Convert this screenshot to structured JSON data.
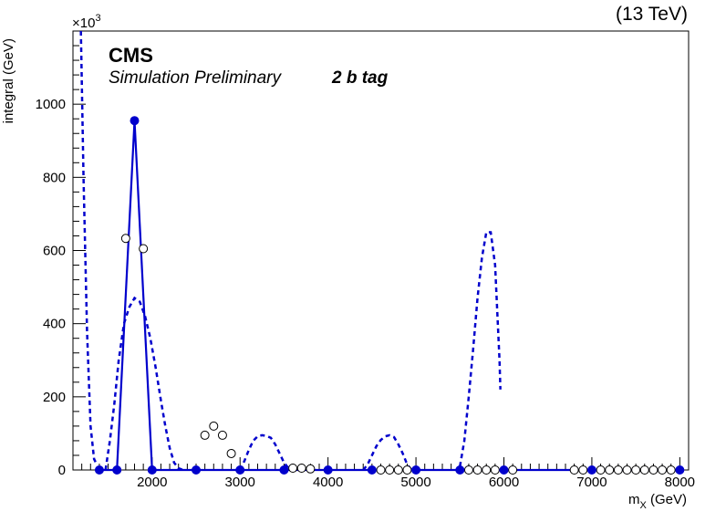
{
  "header": {
    "energy": "(13 TeV)"
  },
  "labels": {
    "cms": "CMS",
    "sim": "Simulation Preliminary",
    "tag": "2 b tag",
    "exponent_base": "×10",
    "exponent_power": "3"
  },
  "colors": {
    "accent": "#0000cc",
    "frame": "#000000",
    "background": "#ffffff"
  },
  "chart_data": {
    "type": "scatter",
    "xlabel_main": "m",
    "xlabel_sub": "X",
    "xlabel_unit": " (GeV)",
    "ylabel": "integral (GeV)",
    "xlim": [
      1100,
      8100
    ],
    "ylim": [
      0,
      1200
    ],
    "y_exponent": "10^3",
    "xticks": [
      2000,
      3000,
      4000,
      5000,
      6000,
      7000,
      8000
    ],
    "yticks": [
      0,
      200,
      400,
      600,
      800,
      1000
    ],
    "series": [
      {
        "style": "filled-markers-solid-line",
        "x": [
          1400,
          1600,
          1800,
          2000,
          2500,
          3000,
          3500,
          4000,
          4500,
          5000,
          5500,
          6000,
          7000,
          8000
        ],
        "values": [
          0,
          0,
          955,
          0,
          0,
          0,
          0,
          0,
          0,
          0,
          0,
          0,
          0,
          0
        ]
      },
      {
        "style": "open-markers",
        "x": [
          1700,
          1900,
          2600,
          2700,
          2800,
          2900,
          3600,
          3700,
          3800,
          4600,
          4700,
          4800,
          4900,
          5600,
          5700,
          5800,
          5900,
          6100,
          6800,
          6900,
          7100,
          7200,
          7300,
          7400,
          7500,
          7600,
          7700,
          7800,
          7900
        ],
        "values": [
          633,
          605,
          95,
          120,
          95,
          45,
          5,
          5,
          3,
          0,
          0,
          0,
          0,
          0,
          0,
          0,
          0,
          0,
          0,
          0,
          0,
          0,
          0,
          0,
          0,
          0,
          0,
          0,
          0
        ]
      },
      {
        "style": "dashed-line",
        "segments": [
          {
            "x": [
              1190,
              1220,
              1260,
              1300,
              1340,
              1360
            ],
            "values": [
              1200,
              800,
              380,
              120,
              30,
              20
            ]
          },
          {
            "x": [
              1470,
              1520,
              1570,
              1620,
              1680,
              1740,
              1800,
              1860,
              1920,
              1980,
              2040,
              2100,
              2150,
              2200,
              2250,
              2300,
              2350
            ],
            "values": [
              0,
              80,
              180,
              300,
              400,
              445,
              470,
              460,
              420,
              360,
              280,
              190,
              120,
              60,
              20,
              5,
              0
            ]
          },
          {
            "x": [
              3000,
              3050,
              3100,
              3150,
              3200,
              3250,
              3300,
              3350,
              3400,
              3450,
              3500,
              3550,
              3600
            ],
            "values": [
              0,
              25,
              55,
              80,
              92,
              95,
              93,
              88,
              70,
              45,
              20,
              5,
              0
            ]
          },
          {
            "x": [
              4400,
              4450,
              4500,
              4550,
              4600,
              4650,
              4700,
              4750,
              4800,
              4850,
              4900,
              4950
            ],
            "values": [
              0,
              15,
              40,
              65,
              82,
              92,
              95,
              90,
              70,
              45,
              15,
              0
            ]
          },
          {
            "x": [
              5500,
              5550,
              5600,
              5650,
              5700,
              5750,
              5800,
              5850,
              5900,
              5950,
              5960
            ],
            "values": [
              10,
              80,
              200,
              330,
              470,
              580,
              650,
              650,
              560,
              300,
              220
            ]
          }
        ]
      }
    ]
  }
}
